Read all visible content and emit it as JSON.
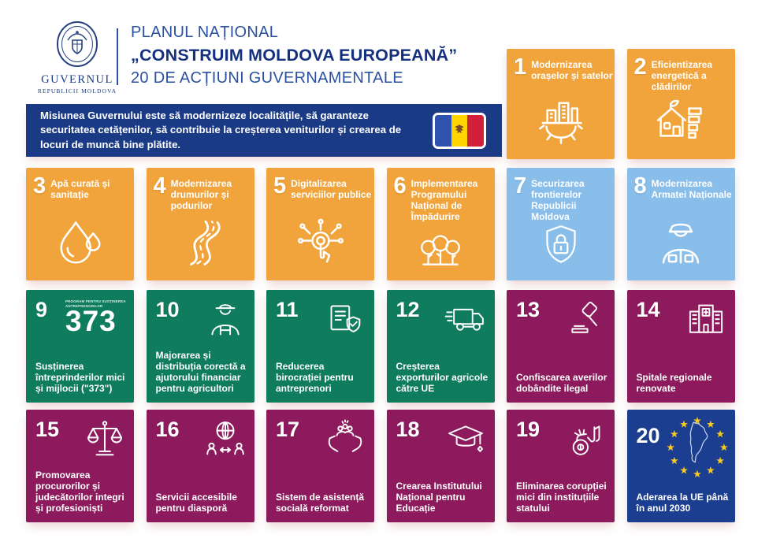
{
  "header": {
    "logo": {
      "title": "GUVERNUL",
      "subtitle": "REPUBLICII MOLDOVA",
      "seal_icon": "state-seal-icon"
    },
    "title_line1": "PLANUL NAȚIONAL",
    "title_line2": "„CONSTRUIM MOLDOVA EUROPEANĂ”",
    "title_line3": "20 DE ACȚIUNI GUVERNAMENTALE"
  },
  "mission": {
    "text": "Misiunea Guvernului este să modernizeze localitățile, să garanteze securitatea cetățenilor, să contribuie la creșterea veniturilor și crearea de locuri de muncă bine plătite.",
    "flag_icon": "moldova-flag-icon"
  },
  "palette": {
    "navy_banner": "#1A3A86",
    "navy_card": "#1B3E90",
    "orange": "#F0A43B",
    "light_blue": "#89BEEB",
    "green": "#0F7C5D",
    "maroon": "#8C1A5C",
    "title_blue": "#2B51A0",
    "title_dark_blue": "#14307E",
    "star_yellow": "#F7C81F"
  },
  "cards": [
    {
      "number": "1",
      "label": "Modernizarea orașelor și satelor",
      "color": "orange",
      "icon": "city-gear-icon"
    },
    {
      "number": "2",
      "label": "Eficientizarea energetică a clădirilor",
      "color": "orange",
      "icon": "house-energy-icon"
    },
    {
      "number": "3",
      "label": "Apă curată și sanitație",
      "color": "orange",
      "icon": "water-drop-icon"
    },
    {
      "number": "4",
      "label": "Modernizarea drumurilor și podurilor",
      "color": "orange",
      "icon": "road-icon"
    },
    {
      "number": "5",
      "label": "Digitalizarea serviciilor publice",
      "color": "orange",
      "icon": "digital-services-icon"
    },
    {
      "number": "6",
      "label": "Implementarea Programului Național de Împădurire",
      "color": "orange",
      "icon": "forest-icon"
    },
    {
      "number": "7",
      "label": "Securizarea frontierelor Republicii Moldova",
      "color": "light_blue",
      "icon": "shield-lock-icon"
    },
    {
      "number": "8",
      "label": "Modernizarea Armatei Naționale",
      "color": "light_blue",
      "icon": "soldier-icon"
    },
    {
      "number": "9",
      "label": "Susținerea întreprinderilor mici și mijlocii (\"373\")",
      "color": "green",
      "icon": "program-373-logo",
      "badge": {
        "small_text": "PROGRAM PENTRU SUSȚINEREA ANTREPRENORILOR",
        "big_text": "373"
      }
    },
    {
      "number": "10",
      "label": "Majorarea și distribuția corectă a ajutorului financiar pentru agricultori",
      "color": "green",
      "icon": "farmer-icon"
    },
    {
      "number": "11",
      "label": "Reducerea birocrației pentru antreprenori",
      "color": "green",
      "icon": "folder-shield-icon"
    },
    {
      "number": "12",
      "label": "Creșterea exporturilor agricole către UE",
      "color": "green",
      "icon": "export-truck-icon"
    },
    {
      "number": "13",
      "label": "Confiscarea averilor dobândite ilegal",
      "color": "maroon",
      "icon": "gavel-icon"
    },
    {
      "number": "14",
      "label": "Spitale regionale renovate",
      "color": "maroon",
      "icon": "hospital-icon"
    },
    {
      "number": "15",
      "label": "Promovarea procurorilor și judecătorilor integri și profesioniști",
      "color": "maroon",
      "icon": "justice-scales-icon"
    },
    {
      "number": "16",
      "label": "Servicii accesibile pentru diasporă",
      "color": "maroon",
      "icon": "globe-diaspora-icon"
    },
    {
      "number": "17",
      "label": "Sistem de asistență socială reformat",
      "color": "maroon",
      "icon": "social-care-icon"
    },
    {
      "number": "18",
      "label": "Crearea Institutului Național pentru Educație",
      "color": "maroon",
      "icon": "graduation-cap-icon"
    },
    {
      "number": "19",
      "label": "Eliminarea corupției mici din instituțiile statului",
      "color": "maroon",
      "icon": "handcuffs-icon"
    },
    {
      "number": "20",
      "label": "Aderarea la UE până în anul 2030",
      "color": "navy",
      "icon": "eu-moldova-icon"
    }
  ]
}
